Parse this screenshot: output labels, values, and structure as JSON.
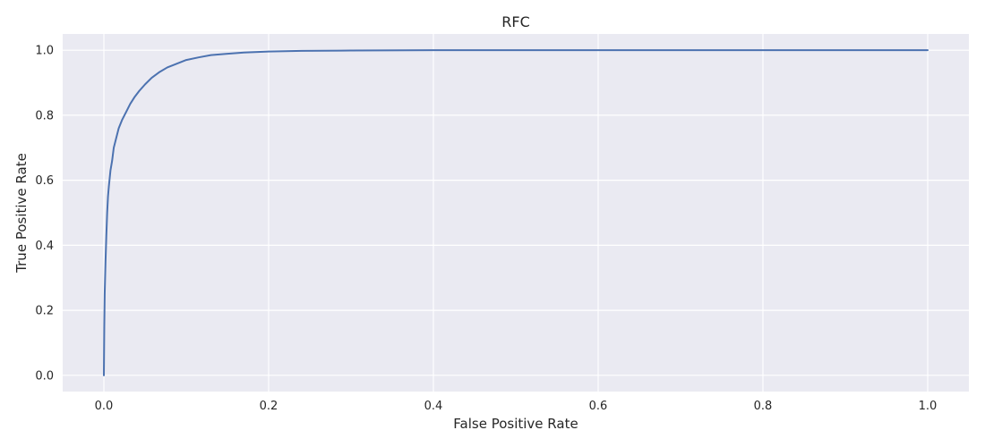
{
  "chart_data": {
    "type": "line",
    "title": "RFC",
    "xlabel": "False Positive Rate",
    "ylabel": "True Positive Rate",
    "xlim": [
      -0.05,
      1.05
    ],
    "ylim": [
      -0.05,
      1.05
    ],
    "grid": true,
    "xticks": [
      0.0,
      0.2,
      0.4,
      0.6,
      0.8,
      1.0
    ],
    "xtick_labels": [
      "0.0",
      "0.2",
      "0.4",
      "0.6",
      "0.8",
      "1.0"
    ],
    "yticks": [
      0.0,
      0.2,
      0.4,
      0.6,
      0.8,
      1.0
    ],
    "ytick_labels": [
      "0.0",
      "0.2",
      "0.4",
      "0.6",
      "0.8",
      "1.0"
    ],
    "series": [
      {
        "color": "#4c72b0",
        "x": [
          0.0,
          0.0005,
          0.001,
          0.002,
          0.003,
          0.004,
          0.005,
          0.006,
          0.008,
          0.01,
          0.012,
          0.015,
          0.018,
          0.022,
          0.027,
          0.032,
          0.037,
          0.043,
          0.05,
          0.058,
          0.067,
          0.077,
          0.088,
          0.1,
          0.115,
          0.13,
          0.15,
          0.17,
          0.2,
          0.24,
          0.3,
          0.4,
          0.5,
          0.6,
          0.8,
          1.0
        ],
        "y": [
          0.0,
          0.15,
          0.25,
          0.35,
          0.43,
          0.5,
          0.55,
          0.58,
          0.63,
          0.66,
          0.7,
          0.73,
          0.76,
          0.785,
          0.81,
          0.835,
          0.855,
          0.875,
          0.895,
          0.915,
          0.932,
          0.947,
          0.958,
          0.97,
          0.978,
          0.985,
          0.989,
          0.993,
          0.996,
          0.998,
          0.999,
          1.0,
          1.0,
          1.0,
          1.0,
          1.0
        ]
      }
    ]
  }
}
